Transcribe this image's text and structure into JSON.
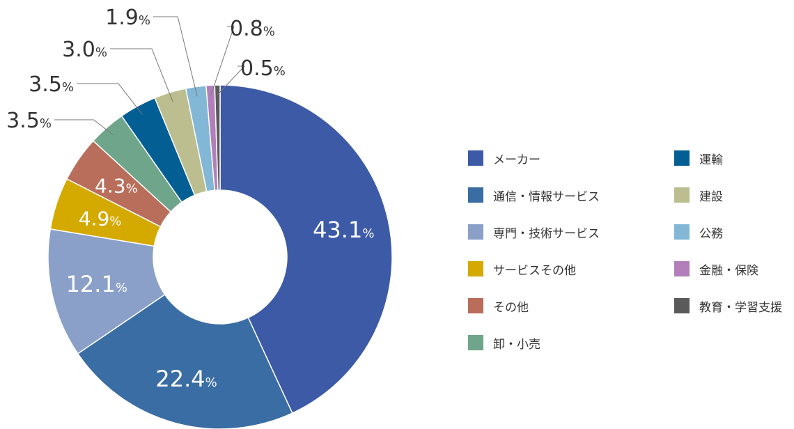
{
  "chart_data": {
    "type": "pie",
    "donut": true,
    "categories": [
      "メーカー",
      "通信・情報サービス",
      "専門・技術サービス",
      "サービスその他",
      "その他",
      "卸・小売",
      "運輸",
      "建設",
      "公務",
      "金融・保険",
      "教育・学習支援"
    ],
    "values": [
      43.1,
      22.4,
      12.1,
      4.9,
      4.3,
      3.5,
      3.5,
      3.0,
      1.9,
      0.8,
      0.5
    ],
    "value_labels": [
      "43.1",
      "22.4",
      "12.1",
      "4.9",
      "4.3",
      "3.5",
      "3.5",
      "3.0",
      "1.9",
      "0.8",
      "0.5"
    ],
    "unit": "%",
    "colors": [
      "#3d5aa7",
      "#3a6da3",
      "#8aa0c8",
      "#d4a900",
      "#b86e5b",
      "#6fa58a",
      "#035e94",
      "#bcbe8f",
      "#82b8d6",
      "#b27fbb",
      "#5a5a5a"
    ],
    "label_text_colors": [
      "#ffffff",
      "#ffffff",
      "#ffffff",
      "#ffffff",
      "#ffffff",
      "#333333",
      "#333333",
      "#333333",
      "#333333",
      "#333333",
      "#333333"
    ],
    "legend_position": "right"
  }
}
